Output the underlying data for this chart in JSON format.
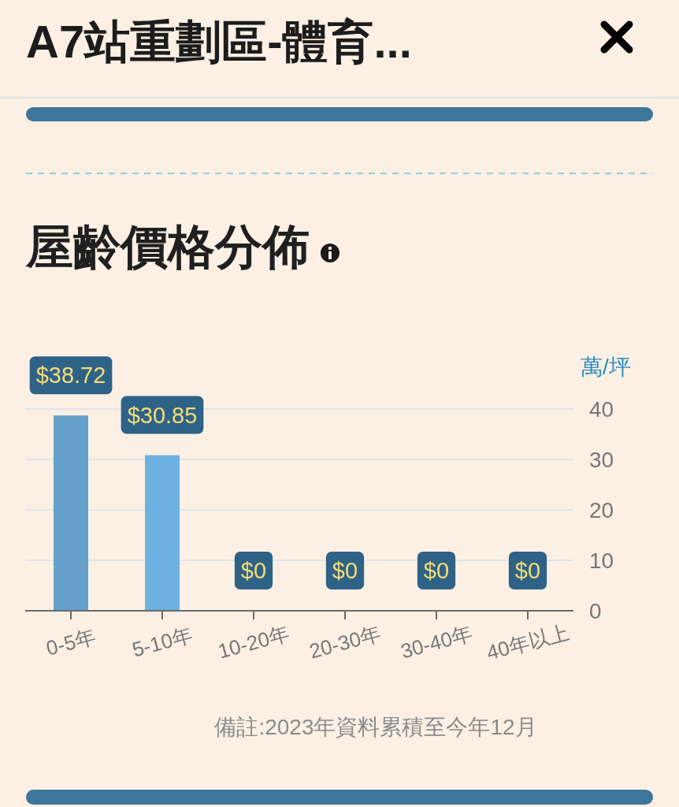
{
  "chart_data": {
    "type": "bar",
    "title": "A7站重劃區-體育...",
    "subtitle": "屋齡價格分佈",
    "ylabel": "萬/坪",
    "annotations": [
      "備註:2023年資料累積至今年12月"
    ],
    "categories": [
      "0-5年",
      "5-10年",
      "10-20年",
      "20-30年",
      "30-40年",
      "40年以上"
    ],
    "values": [
      38.72,
      30.85,
      0,
      0,
      0,
      0
    ],
    "colors": [
      "#65a1cb",
      "#6cb1df",
      "#6cb1df",
      "#6cb1df",
      "#6cb1df",
      "#6cb1df"
    ],
    "value_labels": [
      "$38.72",
      "$30.85",
      "$0",
      "$0",
      "$0",
      "$0"
    ],
    "ylim": [
      0,
      40
    ],
    "yticks": [
      0,
      10,
      20,
      30,
      40
    ],
    "grid": "y"
  }
}
